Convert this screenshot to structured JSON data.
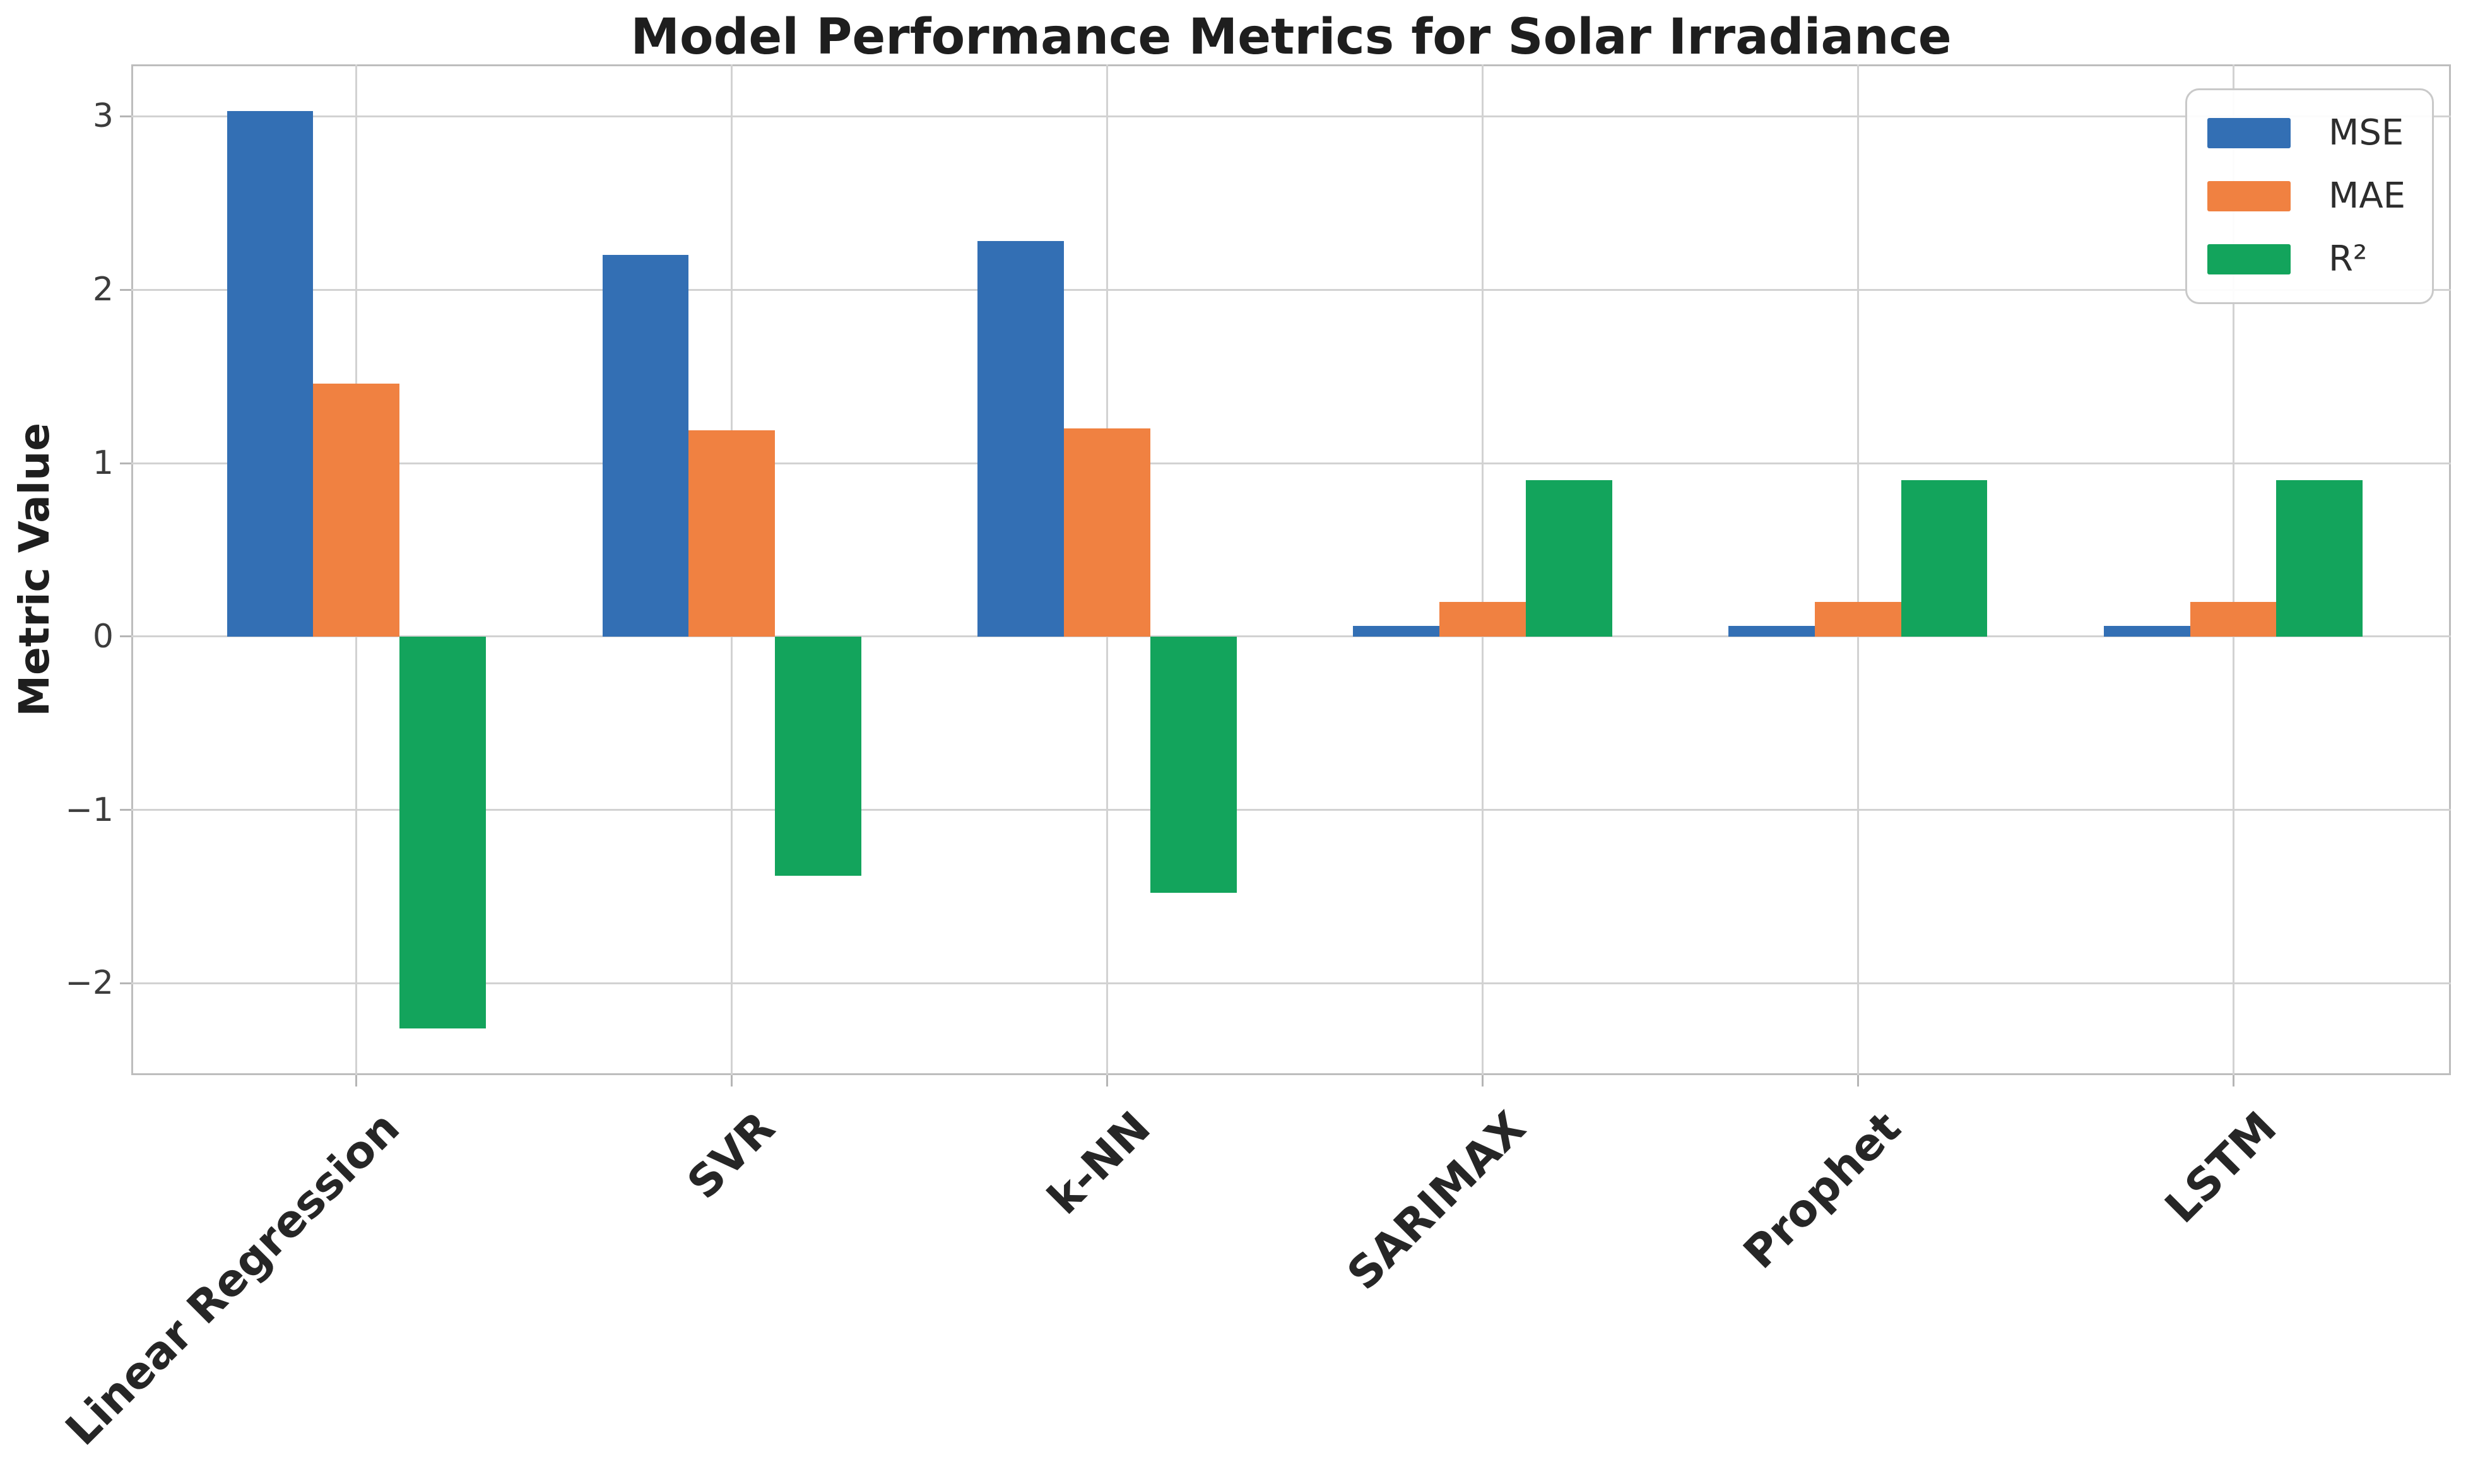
{
  "chart_data": {
    "type": "bar",
    "title": "Model Performance Metrics for Solar Irradiance",
    "xlabel": "",
    "ylabel": "Metric Value",
    "categories": [
      "Linear Regression",
      "SVR",
      "k-NN",
      "SARIMAX",
      "Prophet",
      "LSTM"
    ],
    "series": [
      {
        "name": "MSE",
        "color": "#336FB4",
        "values": [
          3.03,
          2.2,
          2.28,
          0.06,
          0.06,
          0.06
        ]
      },
      {
        "name": "MAE",
        "color": "#F08141",
        "values": [
          1.46,
          1.19,
          1.2,
          0.2,
          0.2,
          0.2
        ]
      },
      {
        "name": "R²",
        "color": "#13A45C",
        "values": [
          -2.26,
          -1.38,
          -1.48,
          0.9,
          0.9,
          0.9
        ]
      }
    ],
    "ylim": [
      -2.53,
      3.3
    ],
    "xlim": [
      -0.6,
      5.58
    ],
    "yticks": [
      3,
      2,
      1,
      0,
      -1,
      -2
    ],
    "ytick_labels": [
      "3",
      "2",
      "1",
      "0",
      "−1",
      "−2"
    ],
    "bar_width_units": 0.23,
    "grid": true,
    "legend_position": "upper right",
    "legend_entries": [
      "MSE",
      "MAE",
      "R²"
    ]
  },
  "style_colors": {
    "grid": "#d2d2d2",
    "spine": "#bdbdbd",
    "tick_mark": "#b5b5b5",
    "title_text": "#1e1e1e",
    "tick_text": "#3c3c3c",
    "xtick_text": "#262626",
    "background": "#ffffff"
  }
}
